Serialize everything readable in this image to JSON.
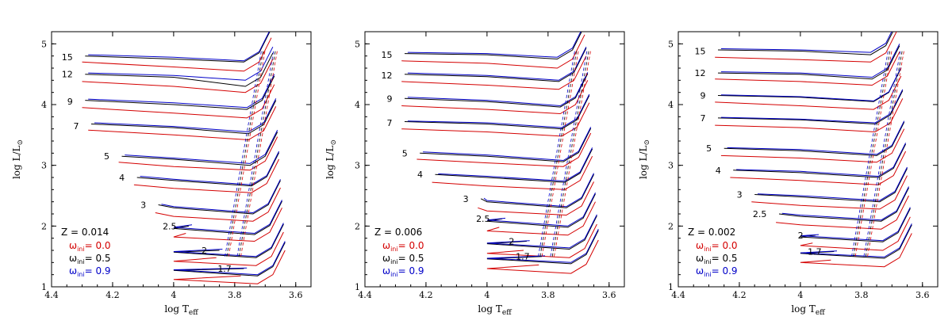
{
  "chart_data": [
    {
      "type": "line",
      "title": "",
      "metallicity_label": "Z = 0.014",
      "xlabel": "log T",
      "xlabel_sub": "eff",
      "ylabel": "log L/L",
      "ylabel_sub": "⊙",
      "xlim": [
        4.4,
        3.55
      ],
      "ylim": [
        1,
        5.2
      ],
      "xticks": [
        "4.4",
        "4.2",
        "4",
        "3.8",
        "3.6"
      ],
      "yticks": [
        "1",
        "2",
        "3",
        "4",
        "5"
      ],
      "masses": [
        {
          "label": "15",
          "x": 4.32,
          "y": 4.78,
          "red": [
            4.7,
            4.62,
            4.55
          ],
          "black": [
            4.8,
            4.75,
            4.7
          ],
          "blue": [
            4.82,
            4.78,
            4.72
          ]
        },
        {
          "label": "12",
          "x": 4.32,
          "y": 4.5,
          "red": [
            4.38,
            4.3,
            4.2
          ],
          "black": [
            4.5,
            4.45,
            4.3
          ],
          "blue": [
            4.52,
            4.48,
            4.4
          ]
        },
        {
          "label": "9",
          "x": 4.32,
          "y": 4.05,
          "red": [
            3.95,
            3.86,
            3.78
          ],
          "black": [
            4.07,
            4.0,
            3.92
          ],
          "blue": [
            4.09,
            4.03,
            3.95
          ]
        },
        {
          "label": "7",
          "x": 4.3,
          "y": 3.65,
          "red": [
            3.58,
            3.5,
            3.42
          ],
          "black": [
            3.68,
            3.62,
            3.52
          ],
          "blue": [
            3.7,
            3.64,
            3.55
          ]
        },
        {
          "label": "5",
          "x": 4.2,
          "y": 3.15,
          "red": [
            3.05,
            2.98,
            2.92
          ],
          "black": [
            3.15,
            3.1,
            3.0
          ],
          "blue": [
            3.17,
            3.12,
            3.03
          ]
        },
        {
          "label": "4",
          "x": 4.15,
          "y": 2.8,
          "red": [
            2.68,
            2.62,
            2.55
          ],
          "black": [
            2.8,
            2.75,
            2.66
          ],
          "blue": [
            2.82,
            2.77,
            2.68
          ]
        },
        {
          "label": "3",
          "x": 4.08,
          "y": 2.35,
          "red": [
            2.22,
            2.16,
            2.08
          ],
          "black": [
            2.35,
            2.3,
            2.2
          ],
          "blue": [
            2.36,
            2.32,
            2.22
          ]
        },
        {
          "label": "2.5",
          "x": 3.98,
          "y": 2.0,
          "red": [
            1.88,
            1.82,
            1.75
          ],
          "black": [
            2.0,
            1.96,
            1.86
          ],
          "blue": [
            2.02,
            1.98,
            1.88
          ]
        },
        {
          "label": "2",
          "x": 3.88,
          "y": 1.6,
          "red": [
            1.48,
            1.42,
            1.35
          ],
          "black": [
            1.6,
            1.57,
            1.48
          ],
          "blue": [
            1.62,
            1.58,
            1.5
          ]
        },
        {
          "label": "1.7",
          "x": 3.8,
          "y": 1.3,
          "red": [
            1.18,
            1.12,
            1.05
          ],
          "black": [
            1.3,
            1.27,
            1.18
          ],
          "blue": [
            1.31,
            1.28,
            1.2
          ]
        }
      ],
      "legend": [
        {
          "symbol": "ω",
          "sub": "ini",
          "text": "=  0.0",
          "color": "#d40000"
        },
        {
          "symbol": "ω",
          "sub": "ini",
          "text": "=  0.5",
          "color": "#000000"
        },
        {
          "symbol": "ω",
          "sub": "ini",
          "text": "=  0.9",
          "color": "#0000c8"
        }
      ]
    },
    {
      "type": "line",
      "title": "",
      "metallicity_label": "Z = 0.006",
      "xlabel": "log T",
      "xlabel_sub": "eff",
      "ylabel": "log L/L",
      "ylabel_sub": "⊙",
      "xlim": [
        4.4,
        3.55
      ],
      "ylim": [
        1,
        5.2
      ],
      "xticks": [
        "4.4",
        "4.2",
        "4",
        "3.8",
        "3.6"
      ],
      "yticks": [
        "1",
        "2",
        "3",
        "4",
        "5"
      ],
      "masses": [
        {
          "label": "15",
          "x": 4.3,
          "y": 4.82,
          "red": [
            4.72,
            4.68,
            4.6
          ],
          "black": [
            4.84,
            4.82,
            4.75
          ],
          "blue": [
            4.86,
            4.84,
            4.78
          ]
        },
        {
          "label": "12",
          "x": 4.3,
          "y": 4.48,
          "red": [
            4.38,
            4.32,
            4.25
          ],
          "black": [
            4.5,
            4.46,
            4.38
          ],
          "blue": [
            4.52,
            4.48,
            4.4
          ]
        },
        {
          "label": "9",
          "x": 4.3,
          "y": 4.1,
          "red": [
            3.98,
            3.92,
            3.85
          ],
          "black": [
            4.1,
            4.05,
            3.96
          ],
          "blue": [
            4.12,
            4.07,
            3.98
          ]
        },
        {
          "label": "7",
          "x": 4.3,
          "y": 3.7,
          "red": [
            3.6,
            3.55,
            3.48
          ],
          "black": [
            3.72,
            3.68,
            3.6
          ],
          "blue": [
            3.73,
            3.7,
            3.62
          ]
        },
        {
          "label": "5",
          "x": 4.25,
          "y": 3.2,
          "red": [
            3.1,
            3.04,
            2.98
          ],
          "black": [
            3.2,
            3.15,
            3.06
          ],
          "blue": [
            3.22,
            3.17,
            3.08
          ]
        },
        {
          "label": "4",
          "x": 4.2,
          "y": 2.85,
          "red": [
            2.72,
            2.66,
            2.6
          ],
          "black": [
            2.85,
            2.8,
            2.72
          ],
          "blue": [
            2.86,
            2.82,
            2.74
          ]
        },
        {
          "label": "3",
          "x": 4.05,
          "y": 2.45,
          "red": [
            2.3,
            2.25,
            2.18
          ],
          "black": [
            2.45,
            2.4,
            2.3
          ],
          "blue": [
            2.46,
            2.42,
            2.32
          ]
        },
        {
          "label": "2.5",
          "x": 3.98,
          "y": 2.12,
          "red": [
            1.98,
            1.92,
            1.85
          ],
          "black": [
            2.12,
            2.08,
            1.98
          ],
          "blue": [
            2.13,
            2.1,
            2.0
          ]
        },
        {
          "label": "2",
          "x": 3.9,
          "y": 1.75,
          "red": [
            1.6,
            1.55,
            1.48
          ],
          "black": [
            1.75,
            1.71,
            1.62
          ],
          "blue": [
            1.76,
            1.72,
            1.64
          ]
        },
        {
          "label": "1.7",
          "x": 3.85,
          "y": 1.5,
          "red": [
            1.36,
            1.3,
            1.22
          ],
          "black": [
            1.5,
            1.46,
            1.38
          ],
          "blue": [
            1.51,
            1.47,
            1.4
          ]
        }
      ],
      "legend": [
        {
          "symbol": "ω",
          "sub": "ini",
          "text": "=  0.0",
          "color": "#d40000"
        },
        {
          "symbol": "ω",
          "sub": "ini",
          "text": "=  0.5",
          "color": "#000000"
        },
        {
          "symbol": "ω",
          "sub": "ini",
          "text": "=  0.9",
          "color": "#0000c8"
        }
      ]
    },
    {
      "type": "line",
      "title": "",
      "metallicity_label": "Z = 0.002",
      "xlabel": "log T",
      "xlabel_sub": "eff",
      "ylabel": "log L/L",
      "ylabel_sub": "⊙",
      "xlim": [
        4.4,
        3.55
      ],
      "ylim": [
        1,
        5.2
      ],
      "xticks": [
        "4.4",
        "4.2",
        "4",
        "3.8",
        "3.6"
      ],
      "yticks": [
        "1",
        "2",
        "3",
        "4",
        "5"
      ],
      "masses": [
        {
          "label": "15",
          "x": 4.3,
          "y": 4.88,
          "red": [
            4.78,
            4.74,
            4.7
          ],
          "black": [
            4.9,
            4.88,
            4.82
          ],
          "blue": [
            4.92,
            4.9,
            4.86
          ]
        },
        {
          "label": "12",
          "x": 4.3,
          "y": 4.52,
          "red": [
            4.42,
            4.38,
            4.32
          ],
          "black": [
            4.52,
            4.5,
            4.42
          ],
          "blue": [
            4.54,
            4.52,
            4.45
          ]
        },
        {
          "label": "9",
          "x": 4.3,
          "y": 4.15,
          "red": [
            4.04,
            3.98,
            3.92
          ],
          "black": [
            4.15,
            4.12,
            4.05
          ],
          "blue": [
            4.16,
            4.13,
            4.06
          ]
        },
        {
          "label": "7",
          "x": 4.3,
          "y": 3.78,
          "red": [
            3.66,
            3.62,
            3.55
          ],
          "black": [
            3.78,
            3.75,
            3.68
          ],
          "blue": [
            3.79,
            3.76,
            3.7
          ]
        },
        {
          "label": "5",
          "x": 4.28,
          "y": 3.28,
          "red": [
            3.16,
            3.12,
            3.05
          ],
          "black": [
            3.28,
            3.24,
            3.16
          ],
          "blue": [
            3.29,
            3.26,
            3.18
          ]
        },
        {
          "label": "4",
          "x": 4.25,
          "y": 2.92,
          "red": [
            2.8,
            2.75,
            2.68
          ],
          "black": [
            2.92,
            2.88,
            2.8
          ],
          "blue": [
            2.93,
            2.9,
            2.82
          ]
        },
        {
          "label": "3",
          "x": 4.18,
          "y": 2.52,
          "red": [
            2.4,
            2.34,
            2.28
          ],
          "black": [
            2.52,
            2.48,
            2.4
          ],
          "blue": [
            2.53,
            2.5,
            2.42
          ]
        },
        {
          "label": "2.5",
          "x": 4.1,
          "y": 2.2,
          "red": [
            2.06,
            2.02,
            1.95
          ],
          "black": [
            2.2,
            2.16,
            2.08
          ],
          "blue": [
            2.21,
            2.18,
            2.1
          ]
        },
        {
          "label": "2",
          "x": 3.98,
          "y": 1.85,
          "red": [
            1.72,
            1.68,
            1.6
          ],
          "black": [
            1.85,
            1.82,
            1.74
          ],
          "blue": [
            1.86,
            1.84,
            1.76
          ]
        },
        {
          "label": "1.7",
          "x": 3.92,
          "y": 1.58,
          "red": [
            1.44,
            1.4,
            1.33
          ],
          "black": [
            1.58,
            1.55,
            1.47
          ],
          "blue": [
            1.59,
            1.56,
            1.49
          ]
        }
      ],
      "legend": [
        {
          "symbol": "ω",
          "sub": "ini",
          "text": "=  0.0",
          "color": "#d40000"
        },
        {
          "symbol": "ω",
          "sub": "ini",
          "text": "=  0.5",
          "color": "#000000"
        },
        {
          "symbol": "ω",
          "sub": "ini",
          "text": "=  0.9",
          "color": "#0000c8"
        }
      ]
    }
  ],
  "colors": {
    "red": "#d40000",
    "black": "#000000",
    "blue": "#0000c8"
  }
}
